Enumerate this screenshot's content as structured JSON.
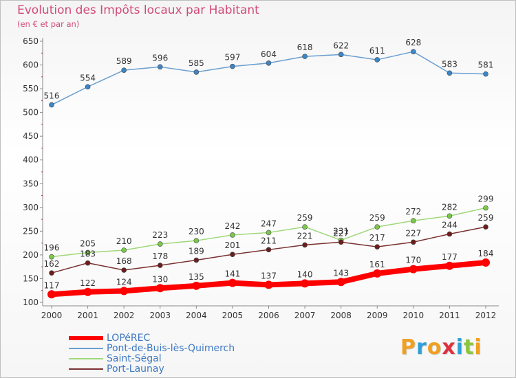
{
  "title": "Evolution des Impôts locaux par Habitant",
  "subtitle": "(en € et par an)",
  "logo": {
    "text": "Proxiti",
    "letters": [
      "P",
      "r",
      "o",
      "x",
      "i",
      "t",
      "i"
    ],
    "colors": [
      "#f0a020",
      "#2f9fd8",
      "#f0a020",
      "#e03040",
      "#2f9fd8",
      "#8cc63f",
      "#f0a020"
    ]
  },
  "chart_data": {
    "type": "line",
    "title": "Evolution des Impôts locaux par Habitant",
    "subtitle": "(en € et par an)",
    "xlabel": "",
    "ylabel": "",
    "ylim": [
      100,
      650
    ],
    "yticks": [
      100,
      150,
      200,
      250,
      300,
      350,
      400,
      450,
      500,
      550,
      600,
      650
    ],
    "x": [
      "2000",
      "2001",
      "2002",
      "2003",
      "2004",
      "2005",
      "2006",
      "2007",
      "2008",
      "2009",
      "2010",
      "2011",
      "2012"
    ],
    "grid": false,
    "legend_position": "bottom-left",
    "series": [
      {
        "name": "LOPéREC",
        "color": "#ff0000",
        "line_width": "thick",
        "marker_color": "#ff0000",
        "values": [
          117,
          122,
          124,
          130,
          135,
          141,
          137,
          140,
          143,
          161,
          170,
          177,
          184
        ]
      },
      {
        "name": "Pont-de-Buis-lès-Quimerch",
        "color": "#6a9fd0",
        "line_width": "thin",
        "marker_color": "#3d85c6",
        "values": [
          516,
          554,
          589,
          596,
          585,
          597,
          604,
          618,
          622,
          611,
          628,
          583,
          581
        ]
      },
      {
        "name": "Saint-Ségal",
        "color": "#9fd87a",
        "line_width": "thin",
        "marker_color": "#7cc84a",
        "values": [
          196,
          205,
          210,
          223,
          230,
          242,
          247,
          259,
          231,
          259,
          272,
          282,
          299
        ]
      },
      {
        "name": "Port-Launay",
        "color": "#7a3030",
        "line_width": "thin",
        "marker_color": "#6b1e1e",
        "values": [
          162,
          183,
          168,
          178,
          189,
          201,
          211,
          221,
          227,
          217,
          227,
          244,
          259
        ]
      }
    ]
  }
}
